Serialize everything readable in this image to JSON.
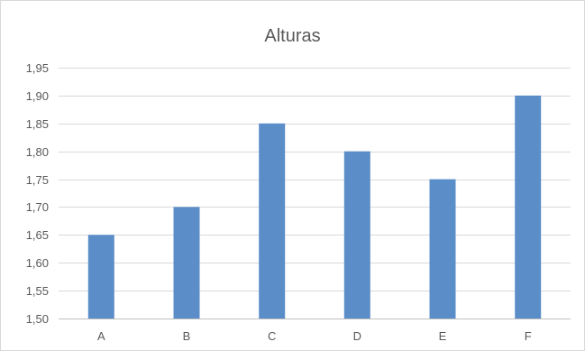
{
  "chart_data": {
    "type": "bar",
    "title": "Alturas",
    "xlabel": "",
    "ylabel": "",
    "categories": [
      "A",
      "B",
      "C",
      "D",
      "E",
      "F"
    ],
    "values": [
      1.65,
      1.7,
      1.85,
      1.8,
      1.75,
      1.9
    ],
    "ylim": [
      1.5,
      1.95
    ],
    "y_ticks": [
      "1,50",
      "1,55",
      "1,60",
      "1,65",
      "1,70",
      "1,75",
      "1,80",
      "1,85",
      "1,90",
      "1,95"
    ],
    "grid": true,
    "legend": "none",
    "bar_color": "#5b8ec9",
    "grid_color": "#d9d9d9",
    "axis_color": "#bfbfbf",
    "text_color": "#595959"
  }
}
